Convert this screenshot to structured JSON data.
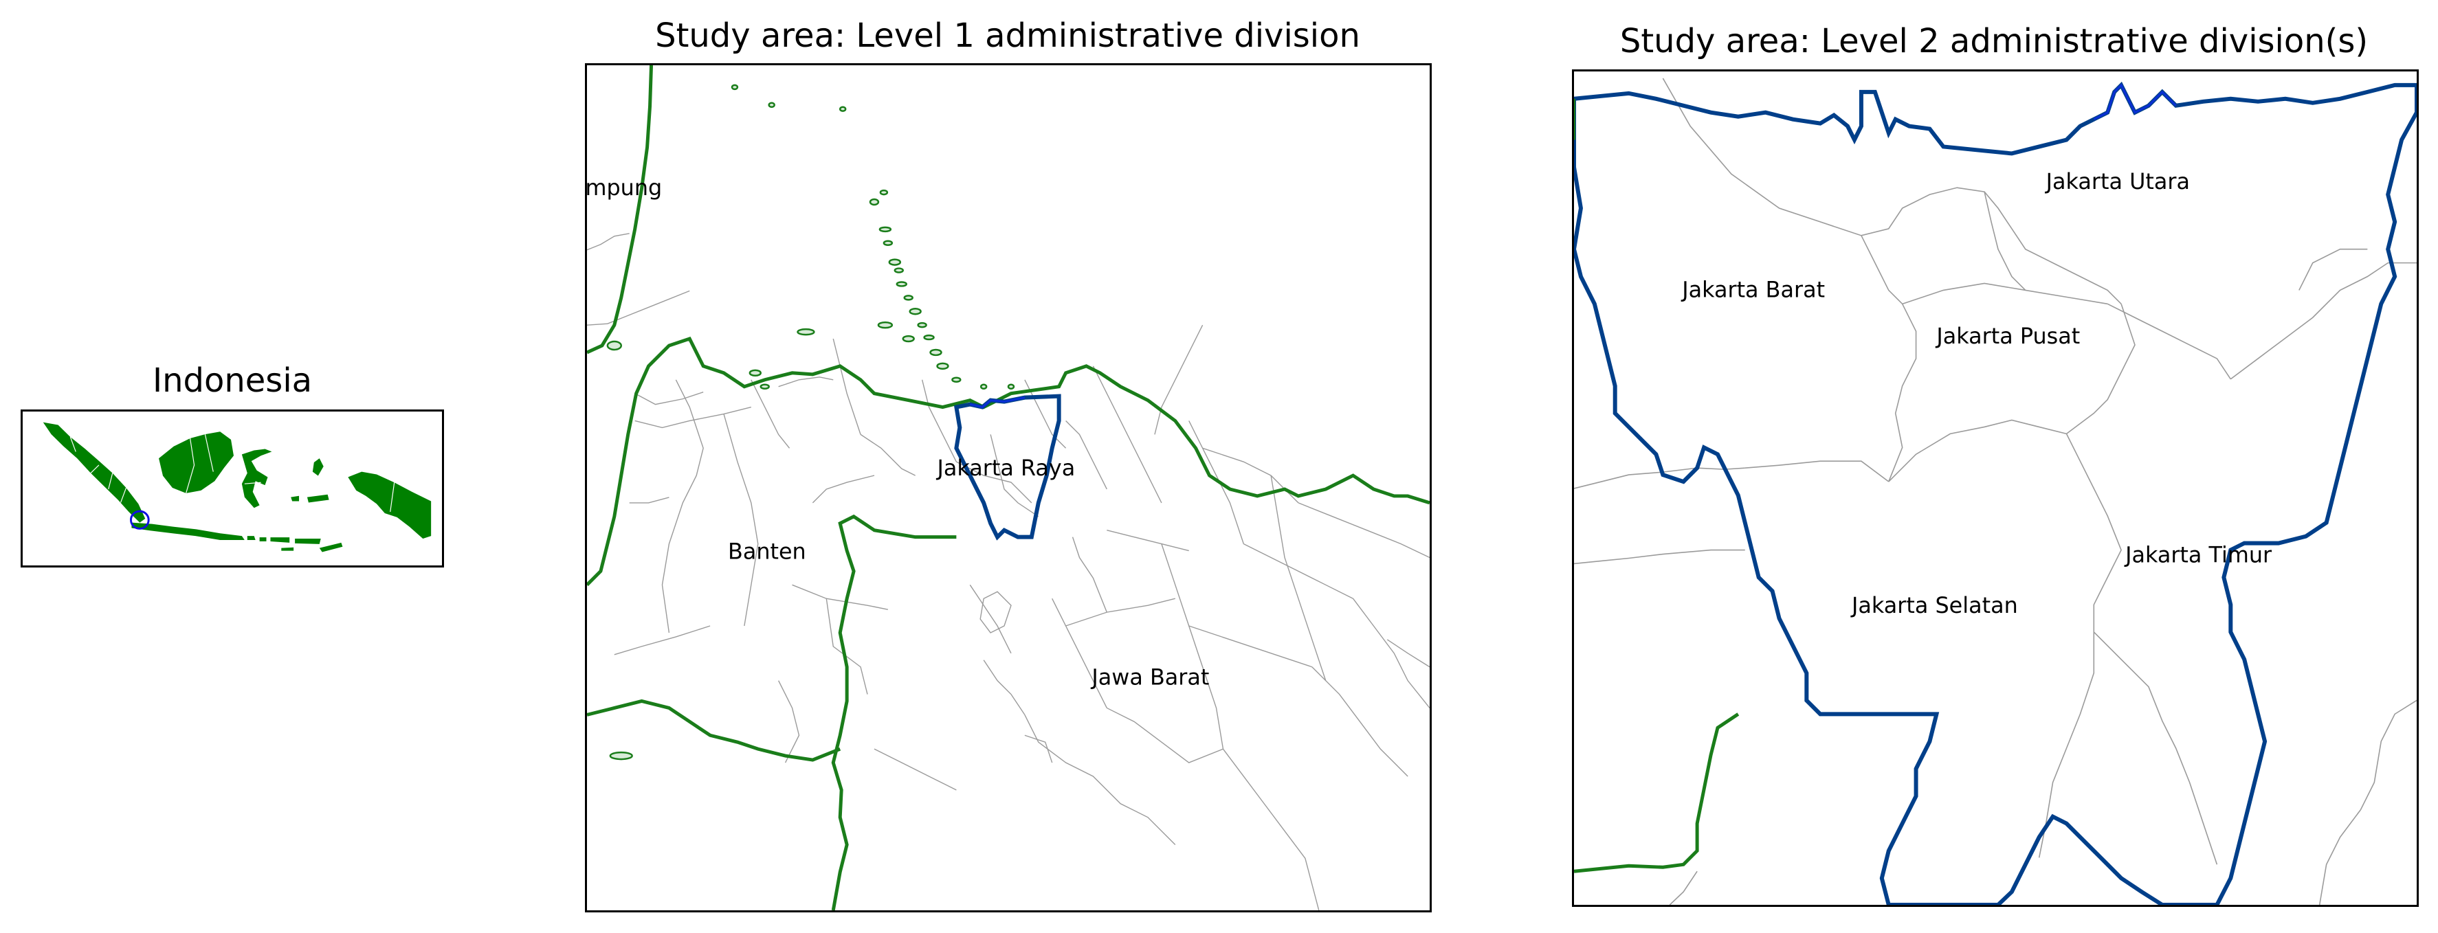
{
  "panels": {
    "overview": {
      "title": "Indonesia"
    },
    "level1": {
      "title": "Study area: Level 1 administrative division",
      "labels": {
        "lampung": "Lampung",
        "banten": "Banten",
        "jakarta_raya": "Jakarta Raya",
        "jawa_barat": "Jawa Barat"
      }
    },
    "level2": {
      "title": "Study area: Level 2 administrative division(s)",
      "labels": {
        "jakarta_utara": "Jakarta Utara",
        "jakarta_barat": "Jakarta Barat",
        "jakarta_pusat": "Jakarta Pusat",
        "jakarta_timur": "Jakarta Timur",
        "jakarta_selatan": "Jakarta Selatan"
      }
    }
  },
  "colors": {
    "land": "#008000",
    "coast": "#1a7d1a",
    "highlight": "#003f8a",
    "highlight_inner": "#0a2fd6",
    "marker": "#1010e0",
    "internal_boundary": "#9a9a9a"
  },
  "icons": {
    "study_area_marker": "circle-marker"
  }
}
